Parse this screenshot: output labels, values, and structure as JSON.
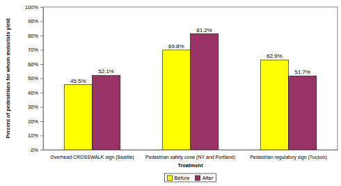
{
  "chart_data": {
    "type": "bar",
    "categories": [
      "Overhead CROSSWALK sign (Seattle)",
      "Pedestrian safety cone (NY and Portland)",
      "Pedestrian regulatory sign (Tucson)"
    ],
    "series": [
      {
        "name": "Before",
        "color": "#FFFF00",
        "values": [
          45.5,
          69.8,
          62.9
        ],
        "value_labels": [
          "45.5%",
          "69.8%",
          "62.9%"
        ]
      },
      {
        "name": "After",
        "color": "#993366",
        "values": [
          52.1,
          81.2,
          51.7
        ],
        "value_labels": [
          "52.1%",
          "81.2%",
          "51.7%"
        ]
      }
    ],
    "x_label": "Treatment",
    "y_label": "Percent of pedestrians for whom motorists yield",
    "ylim": [
      0,
      100
    ],
    "yticks": [
      {
        "value": 0,
        "label": "0%"
      },
      {
        "value": 10,
        "label": "10%"
      },
      {
        "value": 20,
        "label": "20%"
      },
      {
        "value": 30,
        "label": "30%"
      },
      {
        "value": 40,
        "label": "40%"
      },
      {
        "value": 50,
        "label": "50%"
      },
      {
        "value": 60,
        "label": "60%"
      },
      {
        "value": 70,
        "label": "70%"
      },
      {
        "value": 80,
        "label": "80%"
      },
      {
        "value": 90,
        "label": "90%"
      },
      {
        "value": 100,
        "label": "100%"
      }
    ],
    "data_labels": true,
    "grid": false,
    "legend": "bottom"
  }
}
